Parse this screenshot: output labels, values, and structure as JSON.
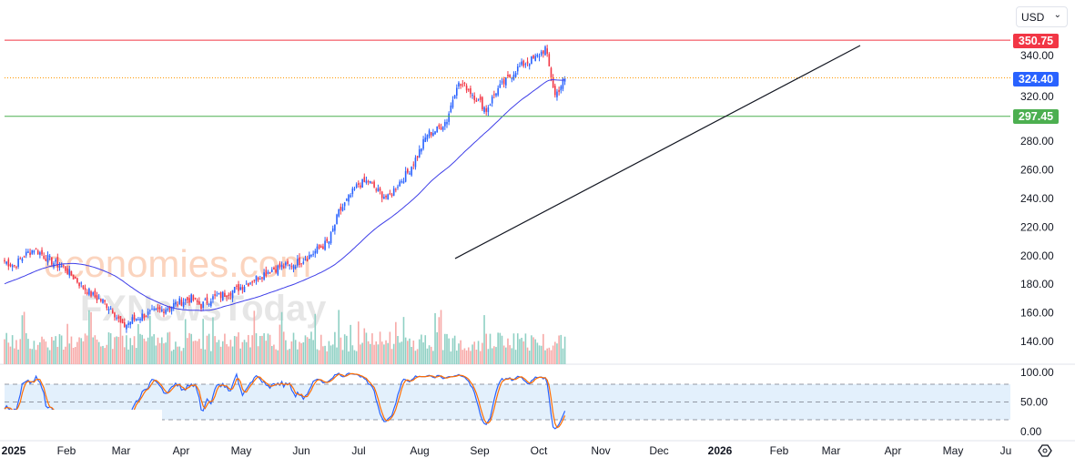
{
  "currency_select": {
    "value": "USD"
  },
  "price_tags": {
    "resistance": "350.75",
    "last": "324.40",
    "support": "297.45"
  },
  "colors": {
    "up": "#2962ff",
    "down": "#f23645",
    "vol_up": "#8fd0c4",
    "vol_down": "#f7a9a7",
    "ma": "#3f3fe8",
    "resistance": "#f23645",
    "support": "#4caf50",
    "stoch_k": "#2962ff",
    "stoch_d": "#ff6d00"
  },
  "watermark": {
    "line1": "economies.com",
    "line2": "FXNewsToday"
  },
  "chart_data": {
    "type": "candlestick",
    "title": "",
    "price_axis": {
      "ticks": [
        "340.00",
        "320.00",
        "280.00",
        "260.00",
        "240.00",
        "220.00",
        "200.00",
        "180.00",
        "160.00",
        "140.00"
      ],
      "ylim": [
        135,
        352
      ]
    },
    "time_axis": {
      "ticks": [
        "2025",
        "Feb",
        "Mar",
        "Apr",
        "May",
        "Jun",
        "Jul",
        "Aug",
        "Sep",
        "Oct",
        "Nov",
        "Dec",
        "2026",
        "Feb",
        "Mar",
        "Apr",
        "May",
        "Ju"
      ]
    },
    "weekly_closes": [
      196,
      193,
      200,
      205,
      200,
      195,
      192,
      185,
      178,
      172,
      168,
      162,
      150,
      155,
      158,
      160,
      162,
      165,
      168,
      170,
      165,
      170,
      172,
      175,
      178,
      182,
      186,
      190,
      192,
      193,
      196,
      200,
      205,
      210,
      230,
      240,
      250,
      252,
      245,
      240,
      250,
      258,
      270,
      285,
      288,
      295,
      320,
      318,
      310,
      302,
      315,
      322,
      330,
      335,
      338,
      345,
      312,
      324
    ],
    "horizontal_levels": [
      350.75,
      324.4,
      297.45
    ],
    "trendline": {
      "from": {
        "date": "2025-08-20",
        "price": 198
      },
      "to": {
        "date": "2026-03-15",
        "price": 347
      }
    },
    "indicators": {
      "moving_average": {
        "period": 50
      },
      "stochastic": {
        "ticks": [
          "100.00",
          "50.00",
          "0.00"
        ],
        "bands": [
          20,
          80
        ]
      }
    }
  }
}
